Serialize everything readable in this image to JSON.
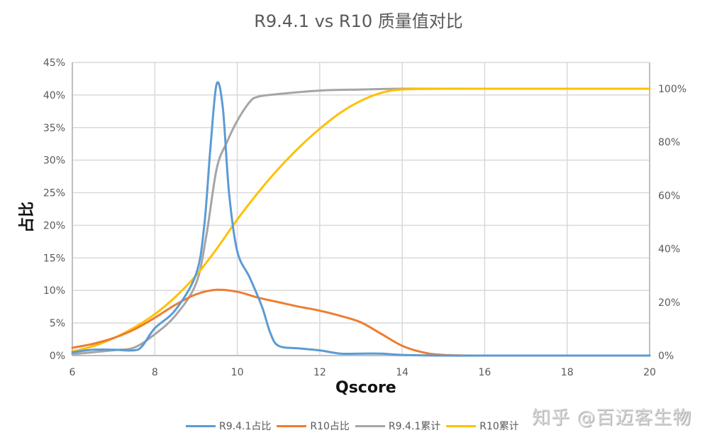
{
  "chart_data": {
    "type": "line",
    "title": "R9.4.1 vs R10 质量值对比",
    "xlabel": "Qscore",
    "ylabel": "占比",
    "y2label": "",
    "xlim": [
      6,
      20
    ],
    "ylim": [
      0,
      0.45
    ],
    "y2lim": [
      0,
      1.0
    ],
    "x_ticks": [
      6,
      8,
      10,
      12,
      14,
      16,
      18,
      20
    ],
    "x_tick_labels": [
      "6",
      "8",
      "10",
      "12",
      "14",
      "16",
      "18",
      "20"
    ],
    "y_ticks": [
      0,
      0.05,
      0.1,
      0.15,
      0.2,
      0.25,
      0.3,
      0.35,
      0.4,
      0.45
    ],
    "y_tick_labels": [
      "0%",
      "5%",
      "10%",
      "15%",
      "20%",
      "25%",
      "30%",
      "35%",
      "40%",
      "45%"
    ],
    "y2_ticks": [
      0,
      0.2,
      0.4,
      0.6,
      0.8,
      1.0
    ],
    "y2_tick_labels": [
      "0%",
      "20%",
      "40%",
      "60%",
      "80%",
      "100%"
    ],
    "grid": true,
    "legend_position": "bottom",
    "series": [
      {
        "name": "R9.4.1占比",
        "axis": "left",
        "color": "#5B9BD5",
        "x": [
          6,
          6.5,
          7,
          7.5,
          7.7,
          8,
          8.5,
          9,
          9.2,
          9.35,
          9.5,
          9.65,
          9.8,
          10,
          10.3,
          10.6,
          10.8,
          11,
          11.5,
          12,
          12.5,
          13,
          13.5,
          14,
          15,
          16,
          18,
          20
        ],
        "values": [
          0.005,
          0.009,
          0.009,
          0.008,
          0.015,
          0.042,
          0.07,
          0.125,
          0.2,
          0.32,
          0.417,
          0.38,
          0.25,
          0.16,
          0.12,
          0.075,
          0.035,
          0.015,
          0.011,
          0.008,
          0.003,
          0.003,
          0.003,
          0.001,
          0.0,
          0.0,
          0.0,
          0.0
        ]
      },
      {
        "name": "R10占比",
        "axis": "left",
        "color": "#ED7D31",
        "x": [
          6,
          6.5,
          7,
          7.5,
          8,
          8.5,
          9,
          9.5,
          10,
          10.5,
          11,
          11.5,
          12,
          12.5,
          13,
          13.5,
          14,
          14.5,
          15,
          16,
          18,
          20
        ],
        "values": [
          0.012,
          0.018,
          0.027,
          0.04,
          0.058,
          0.078,
          0.094,
          0.101,
          0.098,
          0.089,
          0.082,
          0.075,
          0.069,
          0.061,
          0.051,
          0.033,
          0.015,
          0.005,
          0.001,
          0.0,
          0.0,
          0.0
        ]
      },
      {
        "name": "R9.4.1累计",
        "axis": "right",
        "color": "#A5A5A5",
        "x": [
          6,
          7,
          7.5,
          8,
          8.5,
          9,
          9.25,
          9.5,
          9.75,
          10,
          10.3,
          10.5,
          11,
          12,
          13,
          14,
          16,
          18,
          20
        ],
        "values": [
          0.005,
          0.02,
          0.03,
          0.08,
          0.15,
          0.27,
          0.45,
          0.7,
          0.8,
          0.88,
          0.95,
          0.97,
          0.98,
          0.993,
          0.997,
          1.0,
          1.0,
          1.0,
          1.0
        ]
      },
      {
        "name": "R10累计",
        "axis": "right",
        "color": "#FFC000",
        "x": [
          6,
          6.5,
          7,
          7.5,
          8,
          8.5,
          9,
          9.5,
          10,
          10.5,
          11,
          11.5,
          12,
          12.5,
          13,
          13.5,
          14,
          15,
          16,
          18,
          20
        ],
        "values": [
          0.015,
          0.035,
          0.065,
          0.105,
          0.155,
          0.22,
          0.3,
          0.4,
          0.51,
          0.61,
          0.7,
          0.78,
          0.85,
          0.91,
          0.955,
          0.985,
          0.997,
          1.0,
          1.0,
          1.0,
          1.0
        ]
      }
    ]
  },
  "watermark": "知乎 @百迈客生物",
  "colors": {
    "gridline": "#D9D9D9",
    "tick_text": "#595959",
    "title_text": "#595959"
  }
}
